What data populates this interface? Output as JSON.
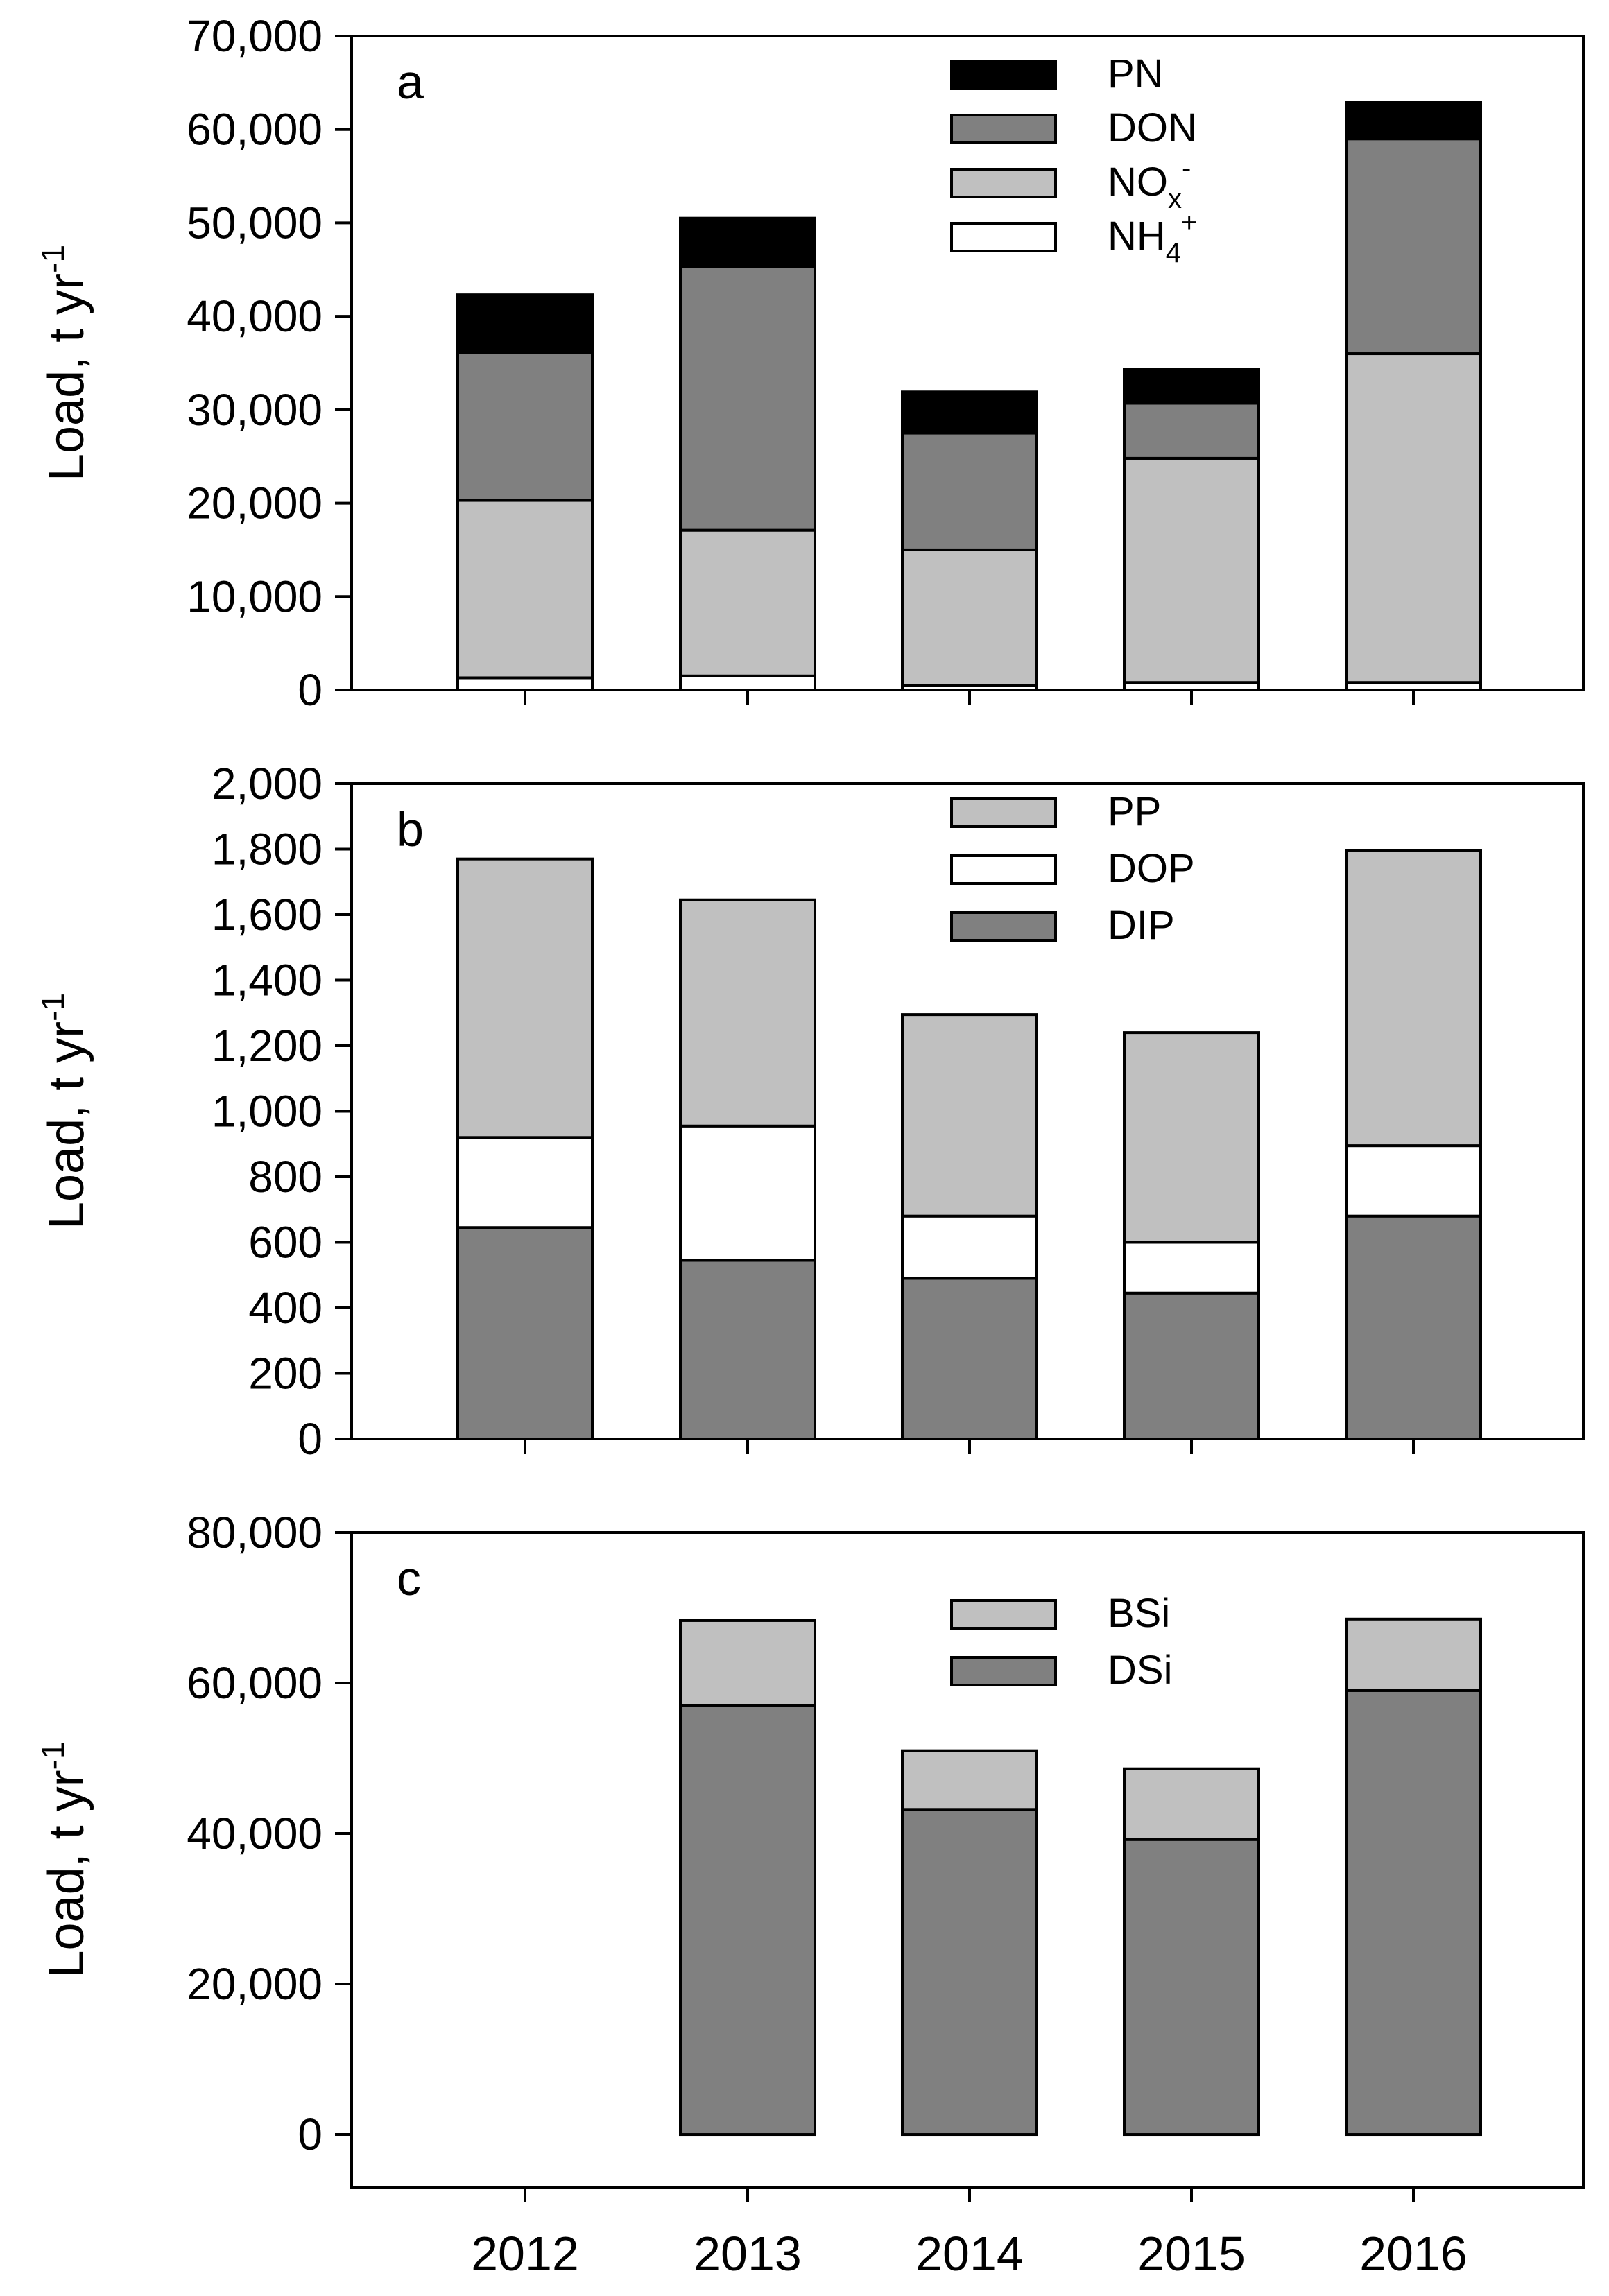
{
  "chart_data": [
    {
      "type": "bar",
      "stacked": true,
      "panel_label": "a",
      "categories": [
        "2012",
        "2013",
        "2014",
        "2015",
        "2016"
      ],
      "series": [
        {
          "name": "NH4+",
          "name_main": "NH",
          "name_sub": "4",
          "name_sup": "+",
          "color": "#ffffff",
          "values": [
            1300,
            1500,
            500,
            800,
            800
          ]
        },
        {
          "name": "NOx-",
          "name_main": "NO",
          "name_sub": "x",
          "name_sup": "-",
          "color": "#c0c0c0",
          "values": [
            19000,
            15600,
            14500,
            24000,
            35200
          ]
        },
        {
          "name": "DON",
          "color": "#808080",
          "values": [
            15800,
            28200,
            12500,
            5900,
            23000
          ]
        },
        {
          "name": "PN",
          "color": "#000000",
          "values": [
            6200,
            5200,
            4400,
            3600,
            3900
          ]
        }
      ],
      "legend_order": [
        "PN",
        "DON",
        "NOx-",
        "NH4+"
      ],
      "ylim": [
        0,
        70000
      ],
      "yticks": [
        0,
        10000,
        20000,
        30000,
        40000,
        50000,
        60000,
        70000
      ],
      "ytick_labels": [
        "0",
        "10,000",
        "20,000",
        "30,000",
        "40,000",
        "50,000",
        "60,000",
        "70,000"
      ],
      "ylabel": {
        "main": "Load, t yr",
        "sup": "-1"
      },
      "legend_position": "top-center",
      "grid": false
    },
    {
      "type": "bar",
      "stacked": true,
      "panel_label": "b",
      "categories": [
        "2012",
        "2013",
        "2014",
        "2015",
        "2016"
      ],
      "series": [
        {
          "name": "DIP",
          "color": "#808080",
          "values": [
            645,
            545,
            490,
            445,
            680
          ]
        },
        {
          "name": "DOP",
          "color": "#ffffff",
          "values": [
            275,
            410,
            190,
            155,
            215
          ]
        },
        {
          "name": "PP",
          "color": "#c0c0c0",
          "values": [
            850,
            690,
            615,
            640,
            900
          ]
        }
      ],
      "legend_order": [
        "PP",
        "DOP",
        "DIP"
      ],
      "ylim": [
        0,
        2000
      ],
      "yticks": [
        0,
        200,
        400,
        600,
        800,
        1000,
        1200,
        1400,
        1600,
        1800,
        2000
      ],
      "ytick_labels": [
        "0",
        "200",
        "400",
        "600",
        "800",
        "1,000",
        "1,200",
        "1,400",
        "1,600",
        "1,800",
        "2,000"
      ],
      "ylabel": {
        "main": "Load, t yr",
        "sup": "-1"
      },
      "legend_position": "top-center",
      "grid": false
    },
    {
      "type": "bar",
      "stacked": true,
      "panel_label": "c",
      "categories": [
        "2012",
        "2013",
        "2014",
        "2015",
        "2016"
      ],
      "series": [
        {
          "name": "DSi",
          "color": "#808080",
          "values": [
            null,
            57000,
            43200,
            39200,
            59000
          ]
        },
        {
          "name": "BSi",
          "color": "#c0c0c0",
          "values": [
            null,
            11300,
            7800,
            9400,
            9500
          ]
        }
      ],
      "legend_order": [
        "BSi",
        "DSi"
      ],
      "ylim": [
        -7000,
        80000
      ],
      "yticks": [
        0,
        20000,
        40000,
        60000,
        80000
      ],
      "ytick_labels": [
        "0",
        "20,000",
        "40,000",
        "60,000",
        "80,000"
      ],
      "ylabel": {
        "main": "Load, t yr",
        "sup": "-1"
      },
      "legend_position": "top-center",
      "grid": false
    }
  ]
}
